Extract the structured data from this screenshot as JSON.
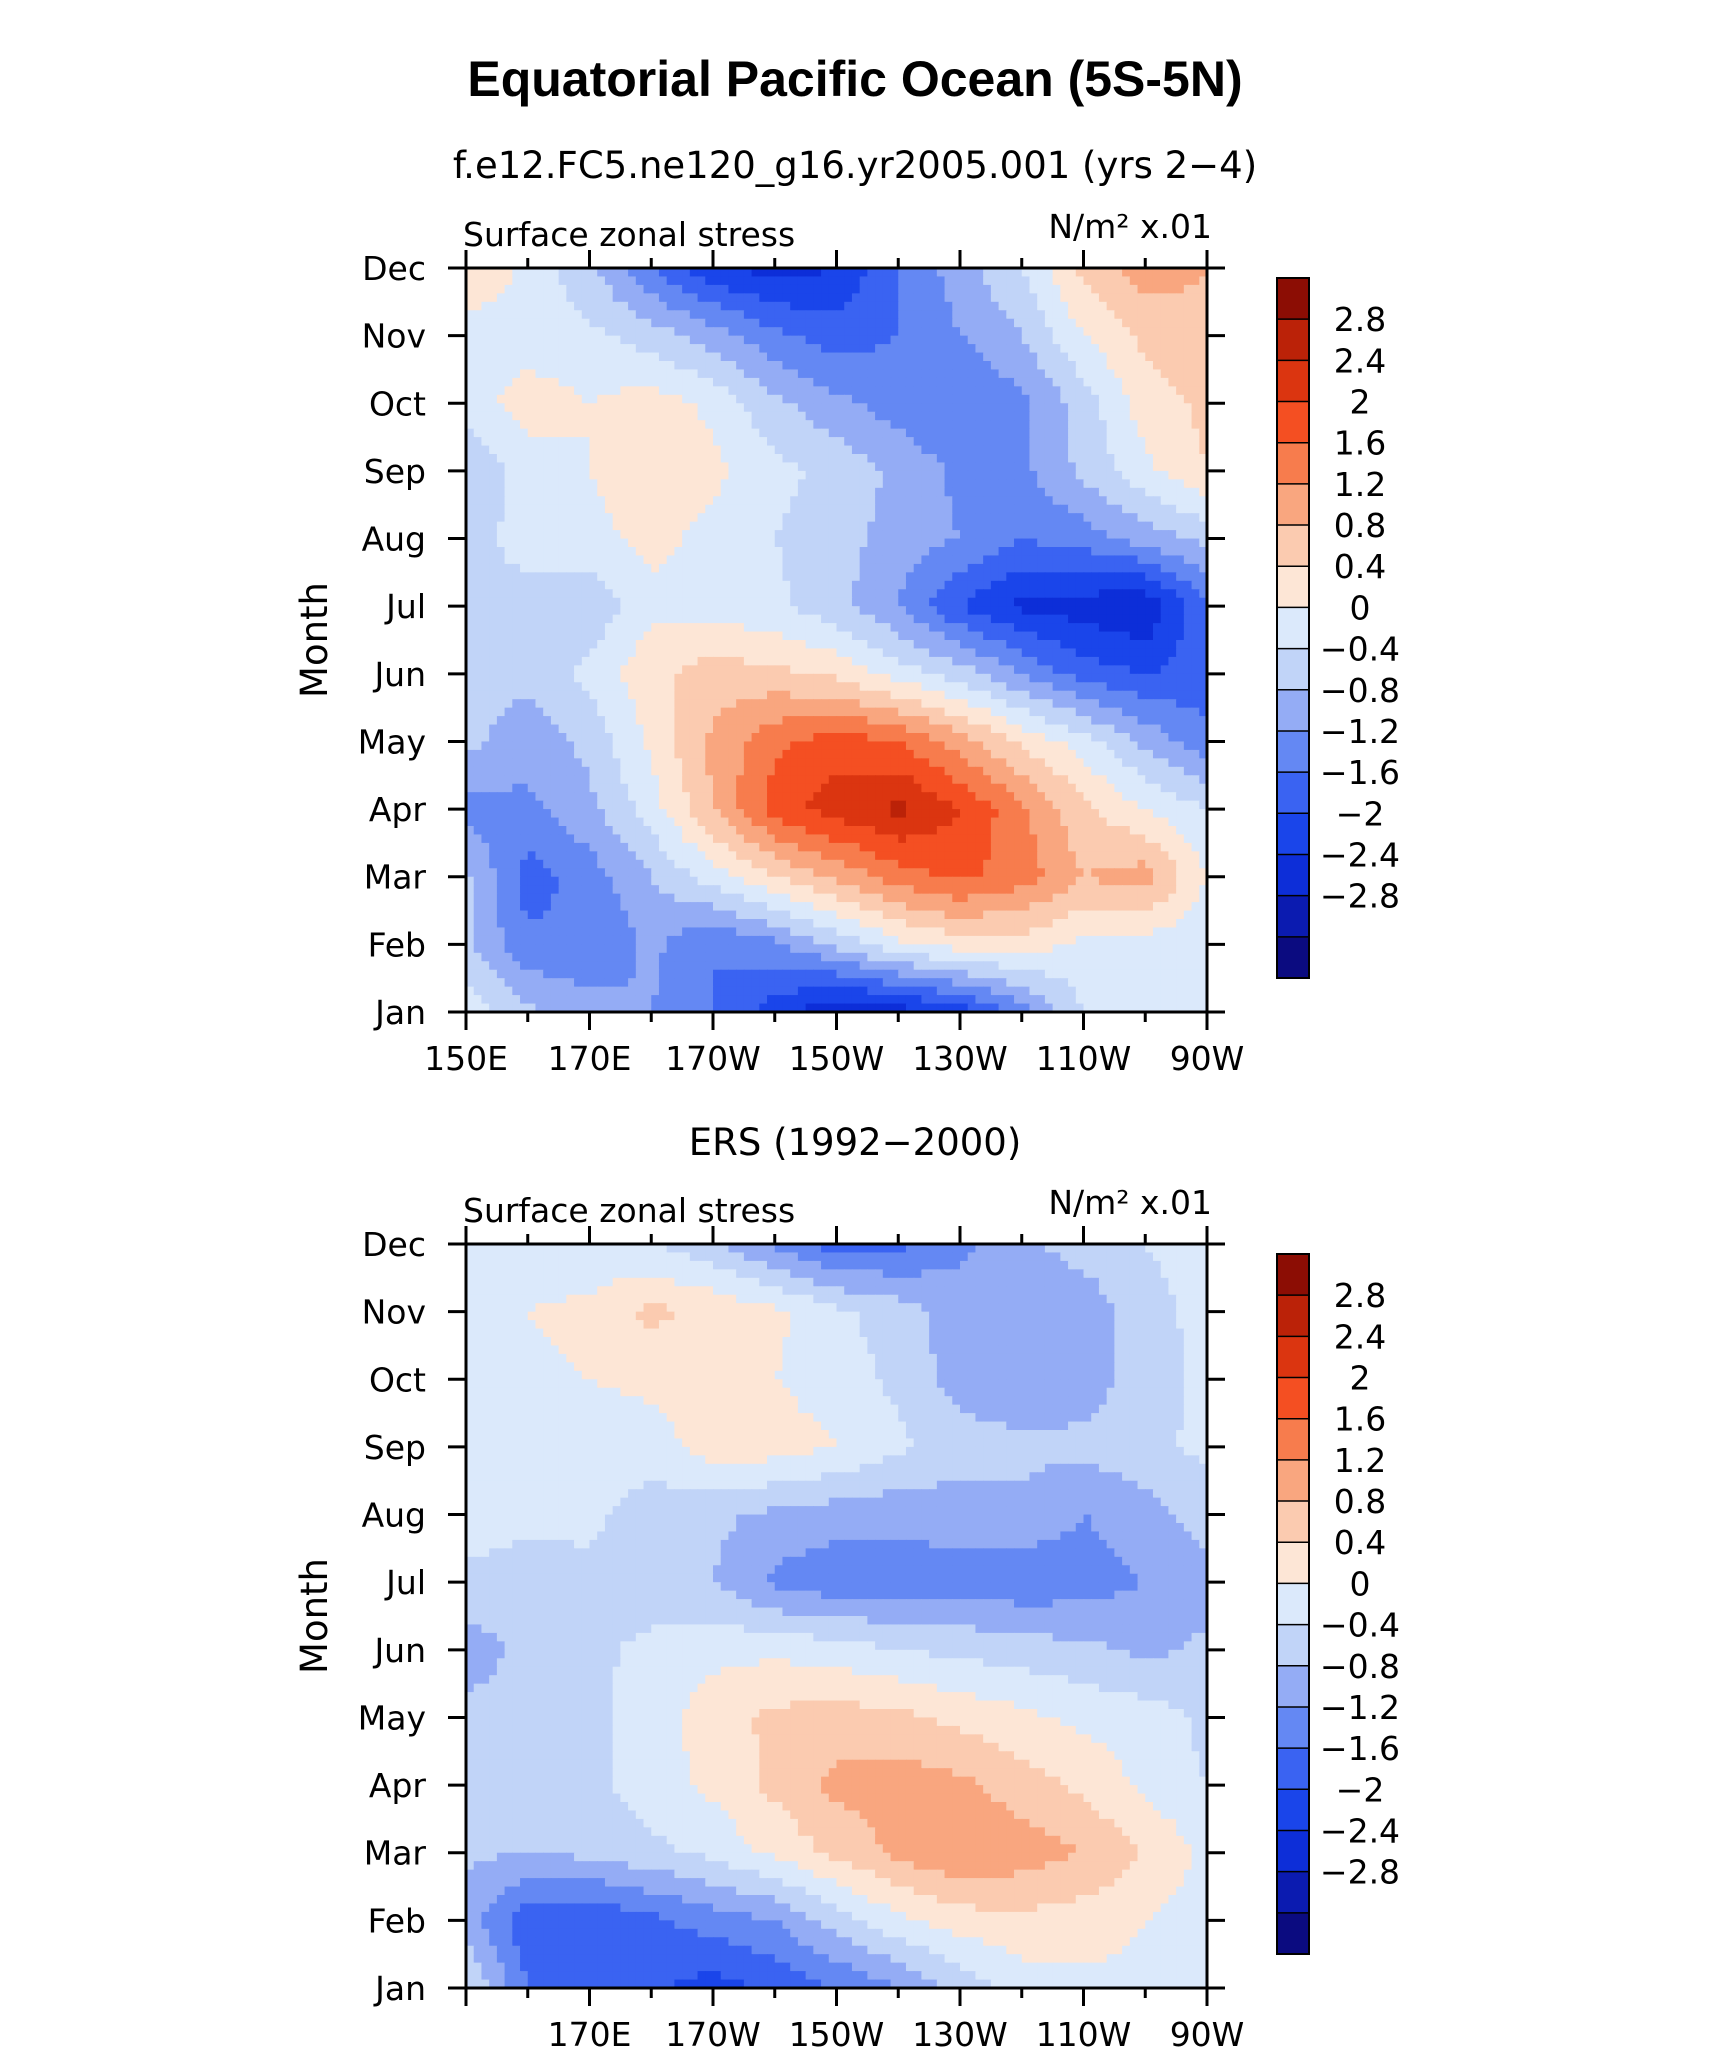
{
  "title": "Equatorial Pacific Ocean (5S-5N)",
  "panels": [
    {
      "subtitle": "f.e12.FC5.ne120_g16.yr2005.001 (yrs 2−4)",
      "left_label": "Surface zonal stress",
      "units_label": "N/m² x.01",
      "ylabel": "Month",
      "x_ticks": [
        "150E",
        "170E",
        "170W",
        "150W",
        "130W",
        "110W",
        "90W"
      ]
    },
    {
      "subtitle": "ERS (1992−2000)",
      "left_label": "Surface zonal stress",
      "units_label": "N/m² x.01",
      "ylabel": "Month",
      "x_ticks": [
        "",
        "170E",
        "170W",
        "150W",
        "130W",
        "110W",
        "90W"
      ]
    }
  ],
  "y_ticks": [
    "Jan",
    "Feb",
    "Mar",
    "Apr",
    "May",
    "Jun",
    "Jul",
    "Aug",
    "Sep",
    "Oct",
    "Nov",
    "Dec"
  ],
  "colorbar": {
    "levels": [
      -3.2,
      -2.8,
      -2.4,
      -2.0,
      -1.6,
      -1.2,
      -0.8,
      -0.4,
      0.0,
      0.4,
      0.8,
      1.2,
      1.6,
      2.0,
      2.4,
      2.8,
      3.2
    ],
    "labels": [
      "2.8",
      "2.4",
      "2",
      "1.6",
      "1.2",
      "0.8",
      "0.4",
      "0",
      "−0.4",
      "−0.8",
      "−1.2",
      "−1.6",
      "−2",
      "−2.4",
      "−2.8"
    ],
    "colors": [
      "#0b0b80",
      "#0b1bb0",
      "#0d2ed8",
      "#1a45ea",
      "#3a63f2",
      "#6488f3",
      "#94acf5",
      "#c1d4f8",
      "#dbe9fb",
      "#fde6d6",
      "#fbcbb0",
      "#f9a67f",
      "#f77c4d",
      "#f44f22",
      "#db3510",
      "#bb2208",
      "#8c0d04"
    ]
  },
  "chart_data": [
    {
      "type": "heatmap",
      "title": "Equatorial Pacific Ocean (5S-5N)",
      "subtitle": "f.e12.FC5.ne120_g16.yr2005.001 (yrs 2−4)",
      "variable": "Surface zonal stress",
      "units": "N/m² x.01",
      "ylabel": "Month",
      "x": [
        "150E",
        "160E",
        "170E",
        "180",
        "170W",
        "160W",
        "150W",
        "140W",
        "130W",
        "120W",
        "110W",
        "100W",
        "90W"
      ],
      "y": [
        "Jan",
        "Feb",
        "Mar",
        "Apr",
        "May",
        "Jun",
        "Jul",
        "Aug",
        "Sep",
        "Oct",
        "Nov",
        "Dec"
      ],
      "z": [
        [
          0.3,
          -0.3,
          -0.6,
          -0.8,
          -1.2,
          -1.8,
          -2.4,
          -2.2,
          -1.8,
          -1.0,
          0.0,
          0.3,
          0.2
        ],
        [
          -0.3,
          -1.1,
          -1.2,
          -0.7,
          -1.2,
          -0.9,
          -0.3,
          0.3,
          0.6,
          0.6,
          0.3,
          0.2,
          0.1
        ],
        [
          -0.3,
          -1.4,
          -1.0,
          -0.4,
          0.2,
          0.8,
          1.3,
          1.8,
          2.1,
          1.8,
          1.2,
          1.4,
          0.4
        ],
        [
          -1.0,
          -0.9,
          -0.5,
          0.2,
          1.2,
          2.2,
          2.6,
          2.9,
          2.4,
          1.7,
          0.9,
          0.4,
          0.0
        ],
        [
          -0.3,
          -0.6,
          -0.3,
          0.5,
          1.3,
          1.9,
          2.2,
          2.0,
          1.4,
          0.7,
          0.2,
          -0.5,
          -1.1
        ],
        [
          -0.3,
          -0.3,
          0.1,
          0.7,
          1.0,
          0.9,
          0.7,
          0.2,
          -0.2,
          -0.8,
          -1.4,
          -1.6,
          -1.4
        ],
        [
          0.0,
          -0.2,
          -0.3,
          0.3,
          0.2,
          0.1,
          -0.3,
          -0.8,
          -1.6,
          -2.1,
          -2.2,
          -2.4,
          -1.2
        ],
        [
          -0.2,
          0.2,
          0.3,
          0.5,
          0.3,
          0.0,
          -0.2,
          -0.6,
          -0.8,
          -1.2,
          -1.0,
          -0.6,
          -0.3
        ],
        [
          -0.4,
          0.2,
          0.4,
          0.6,
          0.5,
          0.1,
          -0.1,
          -0.5,
          -0.9,
          -0.9,
          -0.3,
          0.3,
          0.8
        ],
        [
          0.2,
          0.6,
          0.4,
          0.6,
          0.3,
          -0.3,
          -0.7,
          -1.0,
          -1.2,
          -0.9,
          -0.2,
          0.6,
          0.9
        ],
        [
          0.2,
          0.2,
          0.1,
          -0.2,
          -0.6,
          -1.1,
          -1.4,
          -1.2,
          -0.8,
          -0.4,
          0.4,
          0.9,
          1.1
        ],
        [
          0.8,
          0.3,
          -0.3,
          -1.2,
          -1.9,
          -2.2,
          -2.0,
          -1.2,
          -0.6,
          0.0,
          0.9,
          1.4,
          1.2
        ]
      ],
      "colorbar_levels": [
        -2.8,
        -2.4,
        -2.0,
        -1.6,
        -1.2,
        -0.8,
        -0.4,
        0.0,
        0.4,
        0.8,
        1.2,
        1.6,
        2.0,
        2.4,
        2.8
      ]
    },
    {
      "type": "heatmap",
      "subtitle": "ERS (1992−2000)",
      "variable": "Surface zonal stress",
      "units": "N/m² x.01",
      "ylabel": "Month",
      "x": [
        "150E",
        "160E",
        "170E",
        "180",
        "170W",
        "160W",
        "150W",
        "140W",
        "130W",
        "120W",
        "110W",
        "100W",
        "90W"
      ],
      "y": [
        "Jan",
        "Feb",
        "Mar",
        "Apr",
        "May",
        "Jun",
        "Jul",
        "Aug",
        "Sep",
        "Oct",
        "Nov",
        "Dec"
      ],
      "z": [
        [
          0.1,
          -1.2,
          -1.3,
          -1.5,
          -1.8,
          -1.5,
          -1.2,
          -0.8,
          -0.3,
          0.2,
          0.3,
          0.3,
          0.2
        ],
        [
          -0.6,
          -1.5,
          -1.6,
          -1.3,
          -1.0,
          -0.8,
          -0.2,
          0.3,
          0.6,
          0.7,
          0.6,
          0.4,
          0.2
        ],
        [
          -0.3,
          -0.4,
          -0.3,
          -0.1,
          0.1,
          0.5,
          0.9,
          1.3,
          1.6,
          1.4,
          1.2,
          0.8,
          0.3
        ],
        [
          -0.3,
          -0.2,
          -0.1,
          0.2,
          0.5,
          0.9,
          1.3,
          1.4,
          1.3,
          1.0,
          0.7,
          0.3,
          0.0
        ],
        [
          -0.3,
          -0.2,
          -0.1,
          0.2,
          0.6,
          0.9,
          1.0,
          0.9,
          0.7,
          0.5,
          0.3,
          0.2,
          -0.1
        ],
        [
          -0.6,
          -0.3,
          -0.1,
          0.1,
          0.3,
          0.3,
          0.2,
          0.0,
          -0.1,
          -0.2,
          -0.3,
          -0.5,
          -0.3
        ],
        [
          -0.1,
          -0.2,
          -0.1,
          -0.2,
          -0.4,
          -0.9,
          -1.1,
          -1.0,
          -1.0,
          -1.1,
          -1.0,
          -0.8,
          -0.6
        ],
        [
          0.2,
          0.1,
          0.1,
          -0.2,
          -0.3,
          -0.5,
          -0.6,
          -0.7,
          -0.6,
          -0.5,
          -0.8,
          -0.6,
          -0.2
        ],
        [
          0.3,
          0.3,
          0.2,
          0.2,
          0.6,
          0.6,
          0.4,
          0.1,
          -0.2,
          -0.3,
          -0.3,
          -0.1,
          0.1
        ],
        [
          0.3,
          0.3,
          0.4,
          0.5,
          0.6,
          0.4,
          0.2,
          -0.1,
          -0.6,
          -0.7,
          -0.6,
          -0.2,
          0.1
        ],
        [
          0.2,
          0.4,
          0.5,
          0.9,
          0.7,
          0.5,
          0.1,
          -0.2,
          -0.6,
          -0.7,
          -0.7,
          -0.1,
          0.1
        ],
        [
          0.3,
          0.2,
          0.1,
          0.0,
          -0.3,
          -0.9,
          -1.4,
          -1.3,
          -0.9,
          -0.5,
          -0.2,
          0.0,
          0.1
        ]
      ],
      "colorbar_levels": [
        -2.8,
        -2.4,
        -2.0,
        -1.6,
        -1.2,
        -0.8,
        -0.4,
        0.0,
        0.4,
        0.8,
        1.2,
        1.6,
        2.0,
        2.4,
        2.8
      ]
    }
  ]
}
